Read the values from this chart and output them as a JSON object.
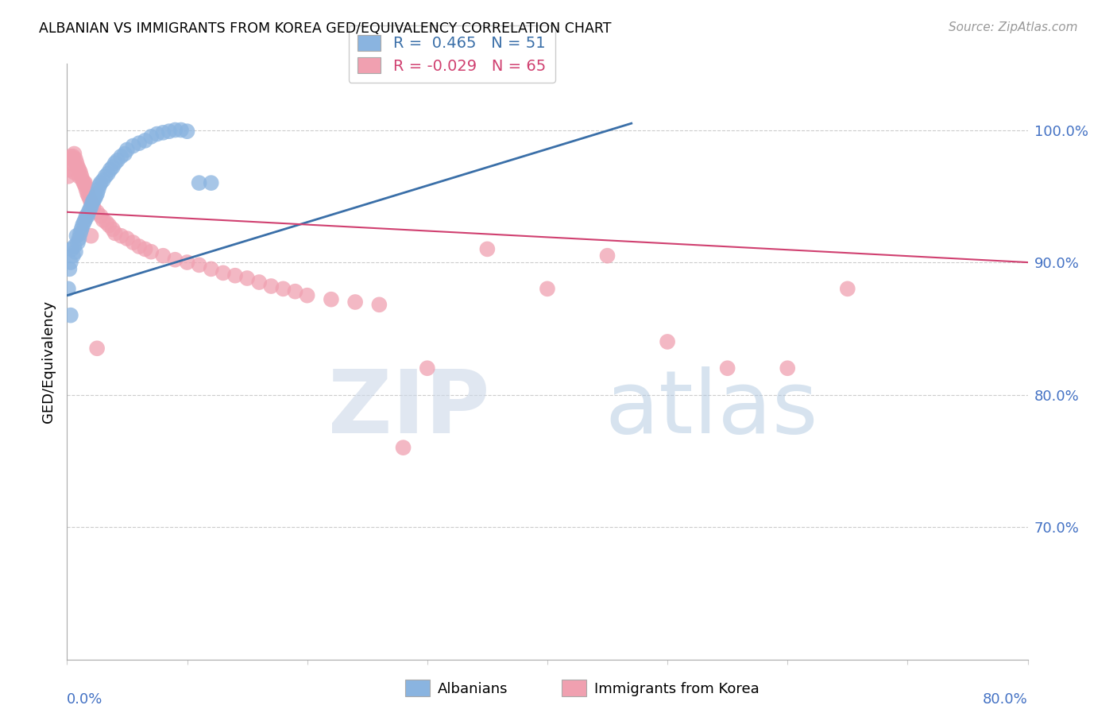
{
  "title": "ALBANIAN VS IMMIGRANTS FROM KOREA GED/EQUIVALENCY CORRELATION CHART",
  "source": "Source: ZipAtlas.com",
  "ylabel": "GED/Equivalency",
  "ytick_labels": [
    "100.0%",
    "90.0%",
    "80.0%",
    "70.0%"
  ],
  "ytick_values": [
    1.0,
    0.9,
    0.8,
    0.7
  ],
  "xlim": [
    0.0,
    0.8
  ],
  "ylim": [
    0.6,
    1.05
  ],
  "legend_r1": "R =  0.465   N = 51",
  "legend_r2": "R = -0.029   N = 65",
  "blue_color": "#8ab4e0",
  "pink_color": "#f0a0b0",
  "trendline_blue": "#3a6fa8",
  "trendline_pink": "#d04070",
  "blue_x": [
    0.001,
    0.002,
    0.003,
    0.004,
    0.005,
    0.006,
    0.007,
    0.008,
    0.009,
    0.01,
    0.011,
    0.012,
    0.013,
    0.014,
    0.015,
    0.016,
    0.017,
    0.018,
    0.019,
    0.02,
    0.021,
    0.022,
    0.023,
    0.024,
    0.025,
    0.026,
    0.027,
    0.028,
    0.03,
    0.032,
    0.034,
    0.036,
    0.038,
    0.04,
    0.042,
    0.045,
    0.048,
    0.05,
    0.055,
    0.06,
    0.065,
    0.07,
    0.075,
    0.08,
    0.085,
    0.09,
    0.095,
    0.1,
    0.11,
    0.12,
    0.003
  ],
  "blue_y": [
    0.88,
    0.895,
    0.9,
    0.91,
    0.905,
    0.912,
    0.908,
    0.92,
    0.915,
    0.918,
    0.922,
    0.925,
    0.928,
    0.93,
    0.932,
    0.935,
    0.935,
    0.938,
    0.94,
    0.942,
    0.945,
    0.947,
    0.948,
    0.95,
    0.952,
    0.955,
    0.958,
    0.96,
    0.962,
    0.965,
    0.967,
    0.97,
    0.972,
    0.975,
    0.977,
    0.98,
    0.982,
    0.985,
    0.988,
    0.99,
    0.992,
    0.995,
    0.997,
    0.998,
    0.999,
    1.0,
    1.0,
    0.999,
    0.96,
    0.96,
    0.86
  ],
  "pink_x": [
    0.001,
    0.002,
    0.003,
    0.004,
    0.005,
    0.006,
    0.007,
    0.008,
    0.009,
    0.01,
    0.011,
    0.012,
    0.013,
    0.014,
    0.015,
    0.016,
    0.017,
    0.018,
    0.019,
    0.02,
    0.022,
    0.025,
    0.028,
    0.03,
    0.033,
    0.035,
    0.038,
    0.04,
    0.045,
    0.05,
    0.055,
    0.06,
    0.065,
    0.07,
    0.08,
    0.09,
    0.1,
    0.11,
    0.12,
    0.13,
    0.14,
    0.15,
    0.16,
    0.17,
    0.18,
    0.19,
    0.2,
    0.22,
    0.24,
    0.26,
    0.28,
    0.3,
    0.35,
    0.4,
    0.45,
    0.5,
    0.55,
    0.6,
    0.65,
    0.003,
    0.006,
    0.01,
    0.015,
    0.02,
    0.025
  ],
  "pink_y": [
    0.965,
    0.97,
    0.975,
    0.978,
    0.98,
    0.982,
    0.978,
    0.975,
    0.972,
    0.97,
    0.968,
    0.965,
    0.962,
    0.96,
    0.958,
    0.955,
    0.952,
    0.95,
    0.948,
    0.945,
    0.942,
    0.938,
    0.935,
    0.932,
    0.93,
    0.928,
    0.925,
    0.922,
    0.92,
    0.918,
    0.915,
    0.912,
    0.91,
    0.908,
    0.905,
    0.902,
    0.9,
    0.898,
    0.895,
    0.892,
    0.89,
    0.888,
    0.885,
    0.882,
    0.88,
    0.878,
    0.875,
    0.872,
    0.87,
    0.868,
    0.76,
    0.82,
    0.91,
    0.88,
    0.905,
    0.84,
    0.82,
    0.82,
    0.88,
    0.98,
    0.968,
    0.965,
    0.96,
    0.92,
    0.835
  ],
  "blue_trendline_x": [
    0.0,
    0.47
  ],
  "blue_trendline_y": [
    0.875,
    1.005
  ],
  "pink_trendline_x": [
    0.0,
    0.8
  ],
  "pink_trendline_y": [
    0.938,
    0.9
  ]
}
